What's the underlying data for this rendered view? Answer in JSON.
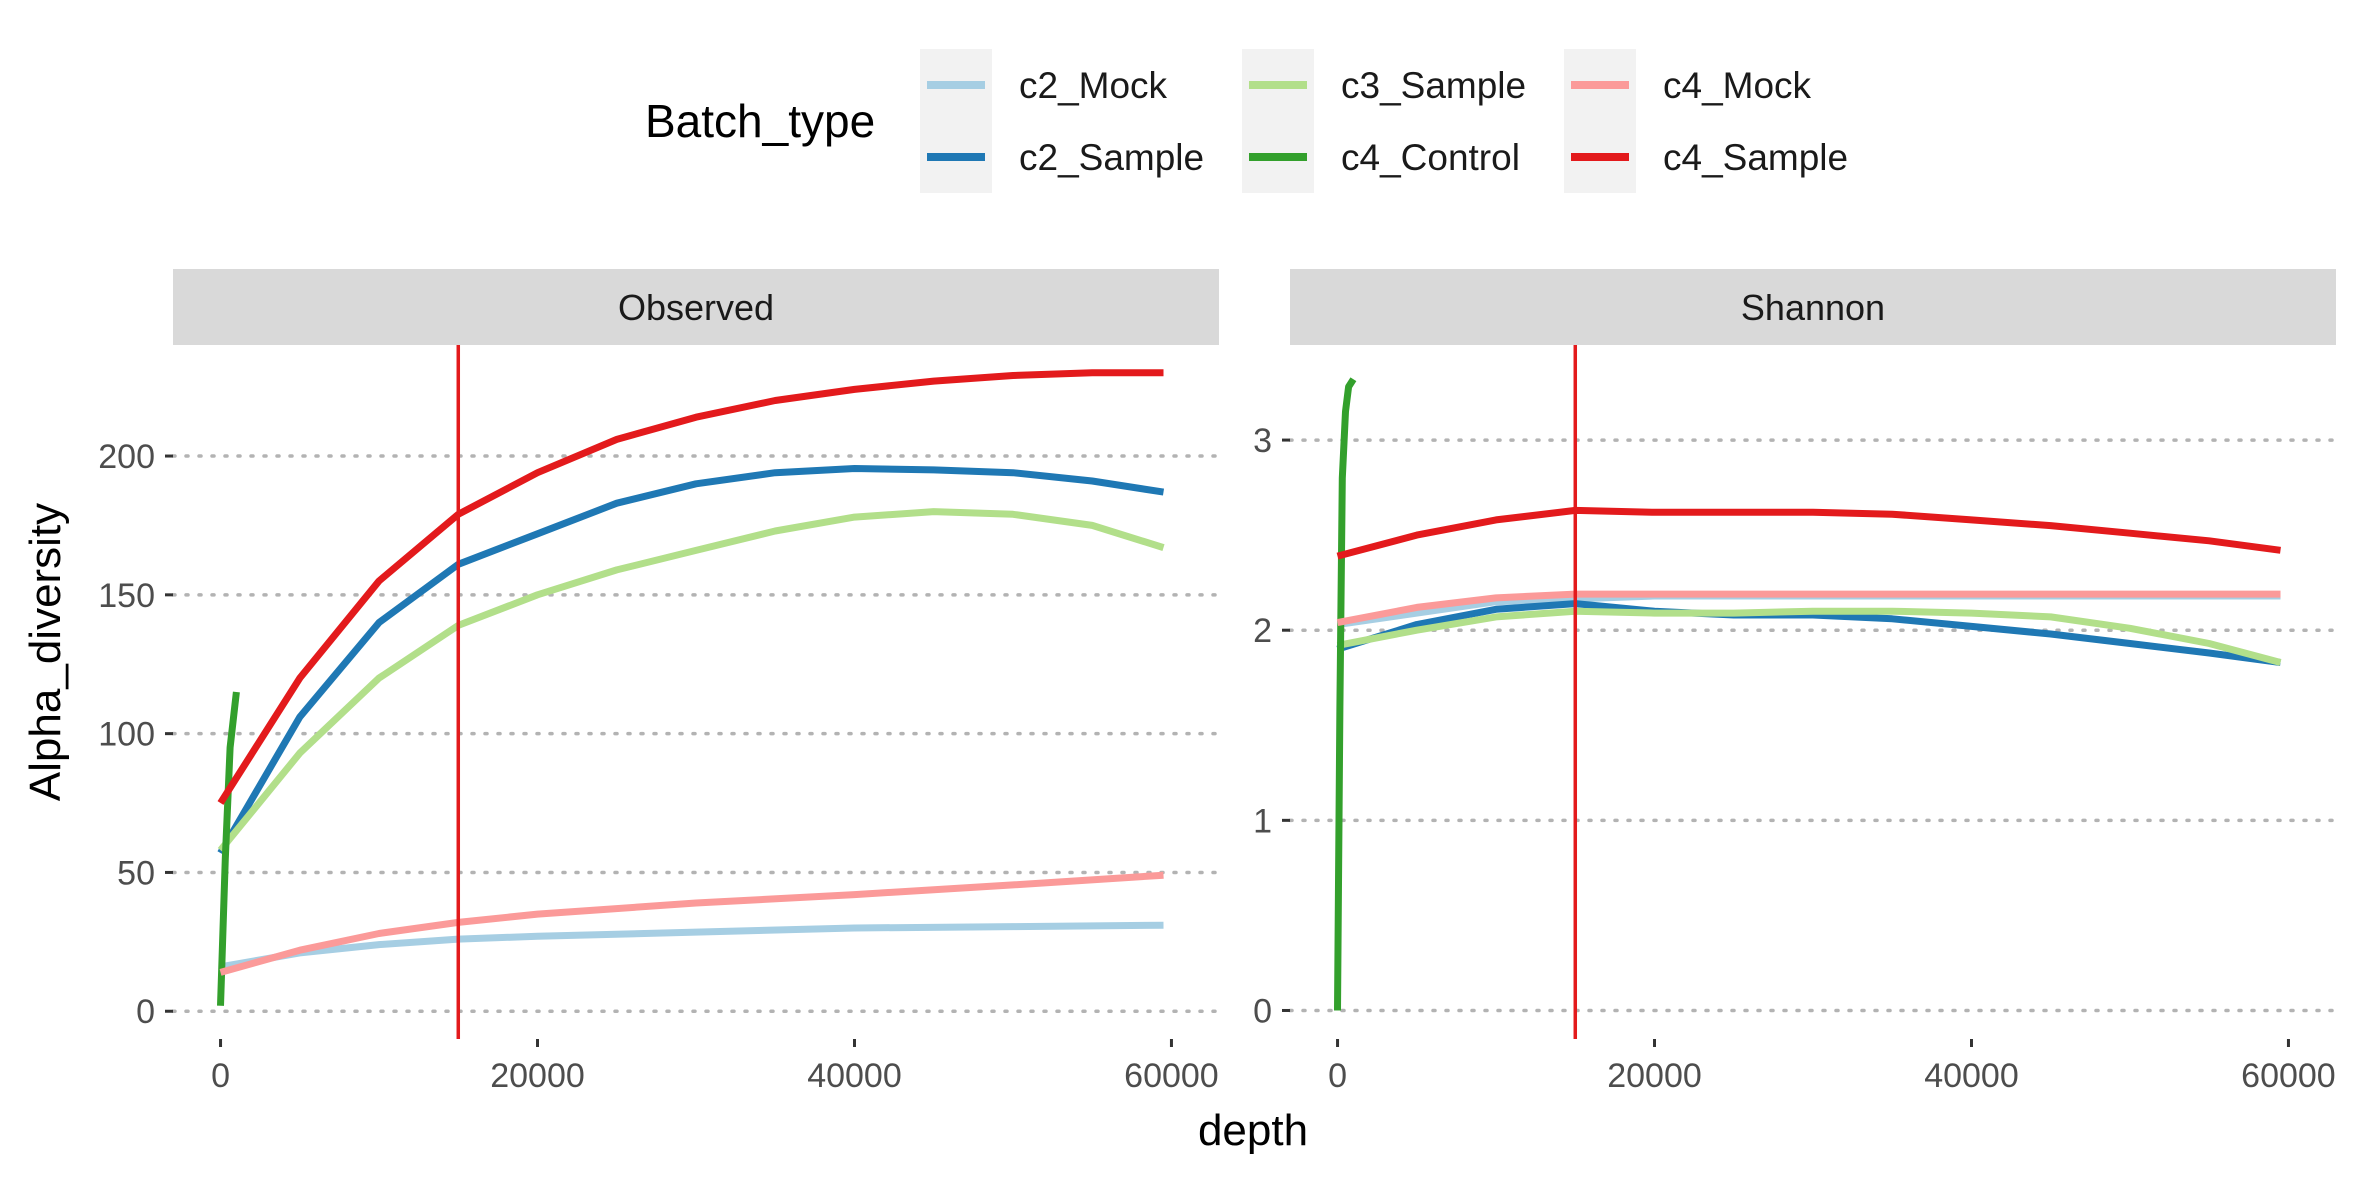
{
  "chart_data": {
    "type": "line",
    "xlabel": "depth",
    "ylabel": "Alpha_diversity",
    "legend": {
      "title": "Batch_type",
      "position": "top",
      "entries": [
        "c2_Mock",
        "c2_Sample",
        "c3_Sample",
        "c4_Control",
        "c4_Mock",
        "c4_Sample"
      ]
    },
    "colors": {
      "c2_Mock": "#a6cee3",
      "c2_Sample": "#1f78b4",
      "c3_Sample": "#b2df8a",
      "c4_Control": "#33a02c",
      "c4_Mock": "#fb9a99",
      "c4_Sample": "#e31a1c"
    },
    "reference_line": {
      "x": 15000,
      "color": "#e31a1c"
    },
    "grid": "horizontal-dotted",
    "xlim": [
      -3000,
      63000
    ],
    "x_ticks": [
      0,
      20000,
      40000,
      60000
    ],
    "panels": [
      {
        "strip": "Observed",
        "ylim": [
          -10,
          240
        ],
        "y_ticks": [
          0,
          50,
          100,
          150,
          200
        ],
        "series": [
          {
            "name": "c2_Mock",
            "x": [
              0,
              5000,
              10000,
              15000,
              20000,
              30000,
              40000,
              50000,
              59500
            ],
            "y": [
              16,
              21,
              24,
              26,
              27,
              28.5,
              30,
              30.5,
              31
            ]
          },
          {
            "name": "c2_Sample",
            "x": [
              0,
              5000,
              10000,
              15000,
              20000,
              25000,
              30000,
              35000,
              40000,
              45000,
              50000,
              55000,
              59500
            ],
            "y": [
              57,
              106,
              140,
              161,
              172,
              183,
              190,
              194,
              195.5,
              195,
              194,
              191,
              187
            ]
          },
          {
            "name": "c3_Sample",
            "x": [
              0,
              5000,
              10000,
              15000,
              20000,
              25000,
              30000,
              35000,
              40000,
              45000,
              50000,
              55000,
              59500
            ],
            "y": [
              58,
              93,
              120,
              139,
              150,
              159,
              166,
              173,
              178,
              180,
              179,
              175,
              167
            ]
          },
          {
            "name": "c4_Control",
            "x": [
              0,
              300,
              600,
              1000
            ],
            "y": [
              2,
              55,
              95,
              115
            ]
          },
          {
            "name": "c4_Mock",
            "x": [
              0,
              5000,
              10000,
              15000,
              20000,
              30000,
              40000,
              50000,
              59500
            ],
            "y": [
              14,
              22,
              28,
              32,
              35,
              39,
              42,
              45.5,
              49
            ]
          },
          {
            "name": "c4_Sample",
            "x": [
              0,
              5000,
              10000,
              15000,
              20000,
              25000,
              30000,
              35000,
              40000,
              45000,
              50000,
              55000,
              59500
            ],
            "y": [
              75,
              120,
              155,
              179,
              194,
              206,
              214,
              220,
              224,
              227,
              229,
              230,
              230
            ]
          }
        ]
      },
      {
        "strip": "Shannon",
        "ylim": [
          -0.15,
          3.5
        ],
        "y_ticks": [
          0,
          1,
          2,
          3
        ],
        "series": [
          {
            "name": "c2_Mock",
            "x": [
              0,
              10000,
              20000,
              30000,
              40000,
              50000,
              59500
            ],
            "y": [
              2.03,
              2.15,
              2.18,
              2.18,
              2.18,
              2.18,
              2.18
            ]
          },
          {
            "name": "c2_Sample",
            "x": [
              0,
              5000,
              10000,
              15000,
              20000,
              25000,
              30000,
              35000,
              40000,
              45000,
              50000,
              55000,
              59500
            ],
            "y": [
              1.9,
              2.03,
              2.11,
              2.14,
              2.1,
              2.08,
              2.08,
              2.06,
              2.02,
              1.98,
              1.93,
              1.88,
              1.83
            ]
          },
          {
            "name": "c3_Sample",
            "x": [
              0,
              5000,
              10000,
              15000,
              20000,
              25000,
              30000,
              35000,
              40000,
              45000,
              50000,
              55000,
              59500
            ],
            "y": [
              1.92,
              2.0,
              2.07,
              2.1,
              2.09,
              2.09,
              2.1,
              2.1,
              2.09,
              2.07,
              2.01,
              1.93,
              1.83
            ]
          },
          {
            "name": "c4_Control",
            "x": [
              0,
              150,
              300,
              500,
              700,
              1000
            ],
            "y": [
              0,
              1.6,
              2.8,
              3.15,
              3.28,
              3.32
            ]
          },
          {
            "name": "c4_Mock",
            "x": [
              0,
              5000,
              10000,
              15000,
              20000,
              30000,
              40000,
              50000,
              59500
            ],
            "y": [
              2.04,
              2.12,
              2.17,
              2.19,
              2.19,
              2.19,
              2.19,
              2.19,
              2.19
            ]
          },
          {
            "name": "c4_Sample",
            "x": [
              0,
              5000,
              10000,
              15000,
              20000,
              25000,
              30000,
              35000,
              40000,
              45000,
              50000,
              55000,
              59500
            ],
            "y": [
              2.39,
              2.5,
              2.58,
              2.63,
              2.62,
              2.62,
              2.62,
              2.61,
              2.58,
              2.55,
              2.51,
              2.47,
              2.42
            ]
          }
        ]
      }
    ]
  }
}
